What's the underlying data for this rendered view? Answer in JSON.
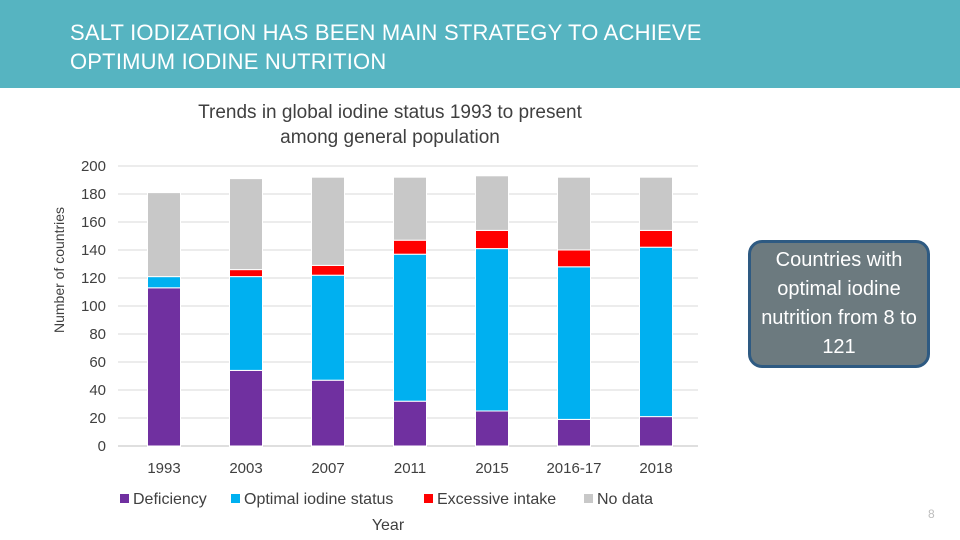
{
  "header": {
    "title": "SALT IODIZATION HAS BEEN MAIN STRATEGY TO ACHIEVE\nOPTIMUM IODINE NUTRITION"
  },
  "callout": {
    "text": "Countries with optimal iodine nutrition from 8 to 121"
  },
  "page_number": "8",
  "colors": {
    "header_bg": "#56b4c1",
    "callout_bg": "#6c7a7f",
    "callout_border": "#2e5a82"
  },
  "chart_data": {
    "type": "bar",
    "stacked": true,
    "title": "Trends in global iodine status 1993 to present\namong general population",
    "xlabel": "Year",
    "ylabel": "Number of countries",
    "ylim": [
      0,
      200
    ],
    "yticks": [
      0,
      20,
      40,
      60,
      80,
      100,
      120,
      140,
      160,
      180,
      200
    ],
    "grid": true,
    "legend_position": "bottom",
    "categories": [
      "1993",
      "2003",
      "2007",
      "2011",
      "2015",
      "2016-17",
      "2018"
    ],
    "series": [
      {
        "name": "Deficiency",
        "color": "#7030a0",
        "values": [
          113,
          54,
          47,
          32,
          25,
          19,
          21
        ]
      },
      {
        "name": "Optimal iodine status",
        "color": "#00b0f0",
        "values": [
          8,
          67,
          75,
          105,
          116,
          109,
          121
        ]
      },
      {
        "name": "Excessive intake",
        "color": "#ff0000",
        "values": [
          0,
          5,
          7,
          10,
          13,
          12,
          12
        ]
      },
      {
        "name": "No data",
        "color": "#c8c8c8",
        "values": [
          60,
          65,
          63,
          45,
          39,
          52,
          38
        ]
      }
    ]
  }
}
